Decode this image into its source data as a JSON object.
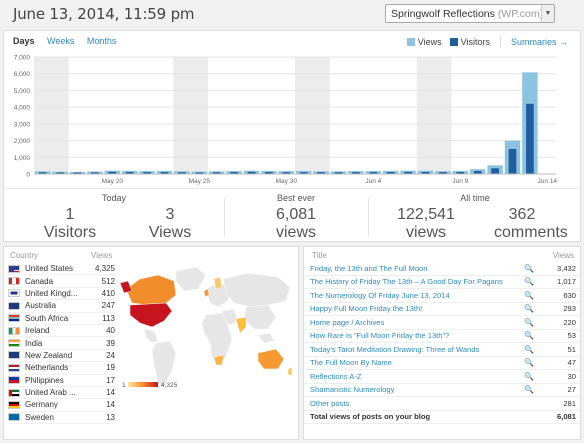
{
  "header": {
    "datetime": "June 13, 2014, 11:59 pm",
    "blog_name": "Springwolf Reflections",
    "blog_host": "(WP.com)"
  },
  "tabs": [
    "Days",
    "Weeks",
    "Months"
  ],
  "legend": {
    "views_label": "Views",
    "visitors_label": "Visitors",
    "summaries_label": "Summaries",
    "views_color": "#8cc3e0",
    "visitors_color": "#1f5f9e"
  },
  "chart_data": {
    "type": "bar",
    "ylim": [
      0,
      7000
    ],
    "yticks": [
      "7,000",
      "6,000",
      "5,000",
      "4,000",
      "3,000",
      "2,000",
      "1,000",
      "0"
    ],
    "date_labels": [
      {
        "i": 4,
        "label": "May 20"
      },
      {
        "i": 9,
        "label": "May 25"
      },
      {
        "i": 14,
        "label": "May 30"
      },
      {
        "i": 19,
        "label": "Jun 4"
      },
      {
        "i": 24,
        "label": "Jun 9"
      },
      {
        "i": 29,
        "label": "Jun 14"
      }
    ],
    "weekend_bands": [
      [
        0,
        1
      ],
      [
        8,
        9
      ],
      [
        15,
        16
      ],
      [
        22,
        23
      ]
    ],
    "series": [
      {
        "name": "Views",
        "values": [
          160,
          140,
          130,
          150,
          200,
          190,
          175,
          185,
          165,
          145,
          160,
          175,
          200,
          185,
          170,
          180,
          165,
          160,
          175,
          180,
          190,
          200,
          195,
          170,
          190,
          290,
          520,
          2000,
          6081,
          0
        ]
      },
      {
        "name": "Visitors",
        "values": [
          100,
          90,
          85,
          95,
          130,
          120,
          110,
          115,
          105,
          95,
          100,
          110,
          125,
          115,
          105,
          110,
          105,
          100,
          110,
          112,
          118,
          125,
          122,
          110,
          120,
          180,
          340,
          1500,
          4200,
          0
        ]
      }
    ]
  },
  "summary": {
    "today_header": "Today",
    "today_visitors": "1",
    "today_visitors_label": "Visitors",
    "today_views": "3",
    "today_views_label": "Views",
    "best_header": "Best ever",
    "best_views": "6,081",
    "best_views_label": "views",
    "alltime_header": "All time",
    "alltime_views": "122,541",
    "alltime_views_label": "views",
    "alltime_comments": "362",
    "alltime_comments_label": "comments"
  },
  "countries": {
    "header_country": "Country",
    "header_views": "Views",
    "legend_min": "1",
    "legend_max": "4,325",
    "rows": [
      {
        "name": "United States",
        "views": "4,325",
        "flag": "us"
      },
      {
        "name": "Canada",
        "views": "512",
        "flag": "ca"
      },
      {
        "name": "United Kingd...",
        "views": "410",
        "flag": "uk"
      },
      {
        "name": "Australia",
        "views": "247",
        "flag": "au"
      },
      {
        "name": "South Africa",
        "views": "113",
        "flag": "za"
      },
      {
        "name": "Ireland",
        "views": "40",
        "flag": "ie"
      },
      {
        "name": "India",
        "views": "39",
        "flag": "in"
      },
      {
        "name": "New Zealand",
        "views": "24",
        "flag": "nz"
      },
      {
        "name": "Netherlands",
        "views": "19",
        "flag": "nl"
      },
      {
        "name": "Philippines",
        "views": "17",
        "flag": "ph"
      },
      {
        "name": "United Arab ...",
        "views": "14",
        "flag": "ae"
      },
      {
        "name": "Germany",
        "views": "14",
        "flag": "de"
      },
      {
        "name": "Sweden",
        "views": "13",
        "flag": "se"
      }
    ]
  },
  "posts": {
    "header_title": "Title",
    "header_views": "Views",
    "rows": [
      {
        "title": "Friday, the 13th and The Full Moon",
        "views": "3,432",
        "zoom": true
      },
      {
        "title": "The History of Friday The 13th – A Good Day For Pagans",
        "views": "1,017",
        "zoom": true
      },
      {
        "title": "The Numerology Of Friday June 13, 2014",
        "views": "630",
        "zoom": true
      },
      {
        "title": "Happy Full Moon Friday the 13th!",
        "views": "293",
        "zoom": true
      },
      {
        "title": "Home page / Archives",
        "views": "220",
        "zoom": true
      },
      {
        "title": "How Rare Is “Full Moon Friday the 13th”?",
        "views": "53",
        "zoom": true
      },
      {
        "title": "Today's Tarot Meditation Drawing: Three of Wands",
        "views": "51",
        "zoom": true
      },
      {
        "title": "The Full Moon By Name",
        "views": "47",
        "zoom": true
      },
      {
        "title": "Reflections A-Z",
        "views": "30",
        "zoom": true
      },
      {
        "title": "Shamanistic Numerology",
        "views": "27",
        "zoom": true
      },
      {
        "title": "Other posts",
        "views": "281",
        "zoom": false
      }
    ],
    "total_label": "Total views of posts on your blog",
    "total_views": "6,081"
  }
}
